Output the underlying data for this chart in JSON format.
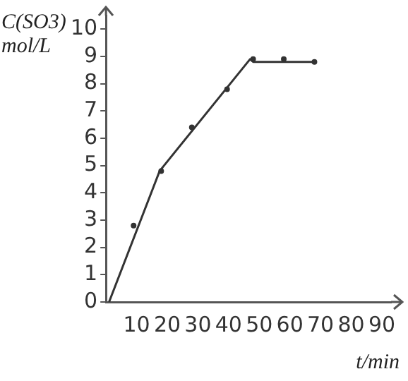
{
  "chart_data": {
    "type": "scatter",
    "xlabel": "t/min",
    "ylabel": "C(SO3) mol/L",
    "xlim": [
      0,
      93
    ],
    "ylim": [
      0,
      10.5
    ],
    "xticks": [
      10,
      20,
      30,
      40,
      50,
      60,
      70,
      80,
      90
    ],
    "yticks": [
      0,
      1,
      2,
      3,
      4,
      5,
      6,
      7,
      8,
      9,
      10
    ],
    "grid": false,
    "legend": false,
    "series": [
      {
        "marker": "circle",
        "color": "#333333",
        "x": [
          9,
          18,
          28,
          39.5,
          48,
          58,
          68
        ],
        "values": [
          2.8,
          4.8,
          6.4,
          7.8,
          8.9,
          8.9,
          8.8
        ]
      },
      {
        "type": "line",
        "marker": "none",
        "color": "#333333",
        "x": [
          1,
          17.5,
          47,
          48,
          68
        ],
        "values": [
          0,
          4.8,
          8.9,
          8.8,
          8.8
        ]
      }
    ]
  }
}
